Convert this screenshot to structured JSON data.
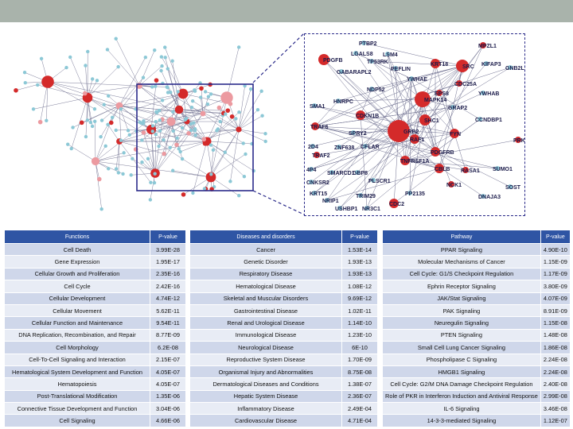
{
  "colors": {
    "topbar": "#a9b3ab",
    "header": "#2f55a4",
    "node_red": "#d42a2a",
    "node_pink": "#ec9aa0",
    "node_blue": "#8cc8d6",
    "box": "#2b2b8a"
  },
  "zoom_nodes": [
    {
      "label": "PTBP2",
      "c": "blue"
    },
    {
      "label": "MPZL1",
      "c": "red"
    },
    {
      "label": "LGALS8",
      "c": "blue"
    },
    {
      "label": "LSM4",
      "c": "blue"
    },
    {
      "label": "PDGFB",
      "c": "red"
    },
    {
      "label": "TP53RK",
      "c": "blue"
    },
    {
      "label": "KRT18",
      "c": "red"
    },
    {
      "label": "SRC",
      "c": "red"
    },
    {
      "label": "KIFAP3",
      "c": "blue"
    },
    {
      "label": "GNB2L",
      "c": "blue"
    },
    {
      "label": "GABARAPL2",
      "c": "blue"
    },
    {
      "label": "PEFLIN",
      "c": "blue"
    },
    {
      "label": "YWHAE",
      "c": "blue"
    },
    {
      "label": "CDC25A",
      "c": "red"
    },
    {
      "label": "NDP52",
      "c": "blue"
    },
    {
      "label": "EPS8",
      "c": "red"
    },
    {
      "label": "YWHAB",
      "c": "blue"
    },
    {
      "label": "MAPK14",
      "c": "red"
    },
    {
      "label": "HNRPC",
      "c": "blue"
    },
    {
      "label": "GRAP2",
      "c": "blue"
    },
    {
      "label": "SMA1",
      "c": "blue"
    },
    {
      "label": "CDKN1B",
      "c": "red"
    },
    {
      "label": "SHC1",
      "c": "red"
    },
    {
      "label": "CCNDBP1",
      "c": "blue"
    },
    {
      "label": "TRAF6",
      "c": "red"
    },
    {
      "label": "SPRY2",
      "c": "blue"
    },
    {
      "label": "GRB2",
      "c": "red"
    },
    {
      "label": "FYN",
      "c": "red"
    },
    {
      "label": "RAF1",
      "c": "red"
    },
    {
      "label": "PRKI",
      "c": "red"
    },
    {
      "label": "2D4",
      "c": "blue"
    },
    {
      "label": "ZNF638",
      "c": "blue"
    },
    {
      "label": "CFLAR",
      "c": "blue"
    },
    {
      "label": "TRAF2",
      "c": "red"
    },
    {
      "label": "PDGFRB",
      "c": "red"
    },
    {
      "label": "TNFRSF1A",
      "c": "red"
    },
    {
      "label": "CBLB",
      "c": "red"
    },
    {
      "label": "RASA1",
      "c": "red"
    },
    {
      "label": "SUMO1",
      "c": "blue"
    },
    {
      "label": "4P4",
      "c": "blue"
    },
    {
      "label": "SMARCD1",
      "c": "blue"
    },
    {
      "label": "GBP8",
      "c": "blue"
    },
    {
      "label": "CNKSR2",
      "c": "blue"
    },
    {
      "label": "PLSCR1",
      "c": "blue"
    },
    {
      "label": "NCK1",
      "c": "red"
    },
    {
      "label": "SOST",
      "c": "blue"
    },
    {
      "label": "KRT15",
      "c": "blue"
    },
    {
      "label": "TRIM29",
      "c": "blue"
    },
    {
      "label": "PP2135",
      "c": "blue"
    },
    {
      "label": "DNAJA3",
      "c": "blue"
    },
    {
      "label": "NRIP1",
      "c": "blue"
    },
    {
      "label": "CDC2",
      "c": "red"
    },
    {
      "label": "USHBP1",
      "c": "blue"
    },
    {
      "label": "NR3C1",
      "c": "blue"
    }
  ],
  "functions_table": {
    "headers": [
      "Functions",
      "P-value"
    ],
    "rows": [
      [
        "Cell Death",
        "3.99E-28"
      ],
      [
        "Gene Expression",
        "1.95E-17"
      ],
      [
        "Cellular Growth and Proliferation",
        "2.35E-16"
      ],
      [
        "Cell Cycle",
        "2.42E-16"
      ],
      [
        "Cellular Development",
        "4.74E-12"
      ],
      [
        "Cellular Movement",
        "5.62E-11"
      ],
      [
        "Cellular Function and Maintenance",
        "9.54E-11"
      ],
      [
        "DNA Replication, Recombination, and Repair",
        "8.77E-09"
      ],
      [
        "Cell Morphology",
        "6.2E-08"
      ],
      [
        "Cell-To-Cell Signaling and Interaction",
        "2.15E-07"
      ],
      [
        "Hematological System Development and Function",
        "4.05E-07"
      ],
      [
        "Hematopoiesis",
        "4.05E-07"
      ],
      [
        "Post-Translational Modification",
        "1.35E-06"
      ],
      [
        "Connective Tissue Development and Function",
        "3.04E-06"
      ],
      [
        "Cell Signaling",
        "4.66E-06"
      ]
    ]
  },
  "diseases_table": {
    "headers": [
      "Diseases and disorders",
      "P-value"
    ],
    "rows": [
      [
        "Cancer",
        "1.53E-14"
      ],
      [
        "Genetic Disorder",
        "1.93E-13"
      ],
      [
        "Respiratory Disease",
        "1.93E-13"
      ],
      [
        "Hematological Disease",
        "1.08E-12"
      ],
      [
        "Skeletal and Muscular Disorders",
        "9.69E-12"
      ],
      [
        "Gastrointestinal Disease",
        "1.02E-11"
      ],
      [
        "Renal and Urological Disease",
        "1.14E-10"
      ],
      [
        "Immunological Disease",
        "1.23E-10"
      ],
      [
        "Neurological Disease",
        "6E-10"
      ],
      [
        "Reproductive System Disease",
        "1.70E-09"
      ],
      [
        "Organismal Injury and Abnormalities",
        "8.75E-08"
      ],
      [
        "Dermatological Diseases and Conditions",
        "1.38E-07"
      ],
      [
        "Hepatic System Disease",
        "2.36E-07"
      ],
      [
        "Inflammatory Disease",
        "2.49E-04"
      ],
      [
        "Cardiovascular Disease",
        "4.71E-04"
      ]
    ]
  },
  "pathway_table": {
    "headers": [
      "Pathway",
      "P-value"
    ],
    "rows": [
      [
        "PPAR Signaling",
        "4.90E-10"
      ],
      [
        "Molecular Mechanisms of Cancer",
        "1.15E-09"
      ],
      [
        "Cell Cycle: G1/S Checkpoint Regulation",
        "1.17E-09"
      ],
      [
        "Ephrin Receptor Signaling",
        "3.80E-09"
      ],
      [
        "JAK/Stat Signaling",
        "4.07E-09"
      ],
      [
        "PAK Signaling",
        "8.91E-09"
      ],
      [
        "Neuregulin Signaling",
        "1.15E-08"
      ],
      [
        "PTEN Signaling",
        "1.48E-08"
      ],
      [
        "Small Cell Lung Cancer Signaling",
        "1.86E-08"
      ],
      [
        "Phospholipase C Signaling",
        "2.24E-08"
      ],
      [
        "HMGB1 Signaling",
        "2.24E-08"
      ],
      [
        "Cell Cycle: G2/M DNA Damage Checkpoint Regulation",
        "2.40E-08"
      ],
      [
        "Role of PKR in Interferon Induction and Antiviral Response",
        "2.99E-08"
      ],
      [
        "IL-6 Signaling",
        "3.46E-08"
      ],
      [
        "14-3-3-mediated Signaling",
        "1.12E-07"
      ]
    ]
  }
}
